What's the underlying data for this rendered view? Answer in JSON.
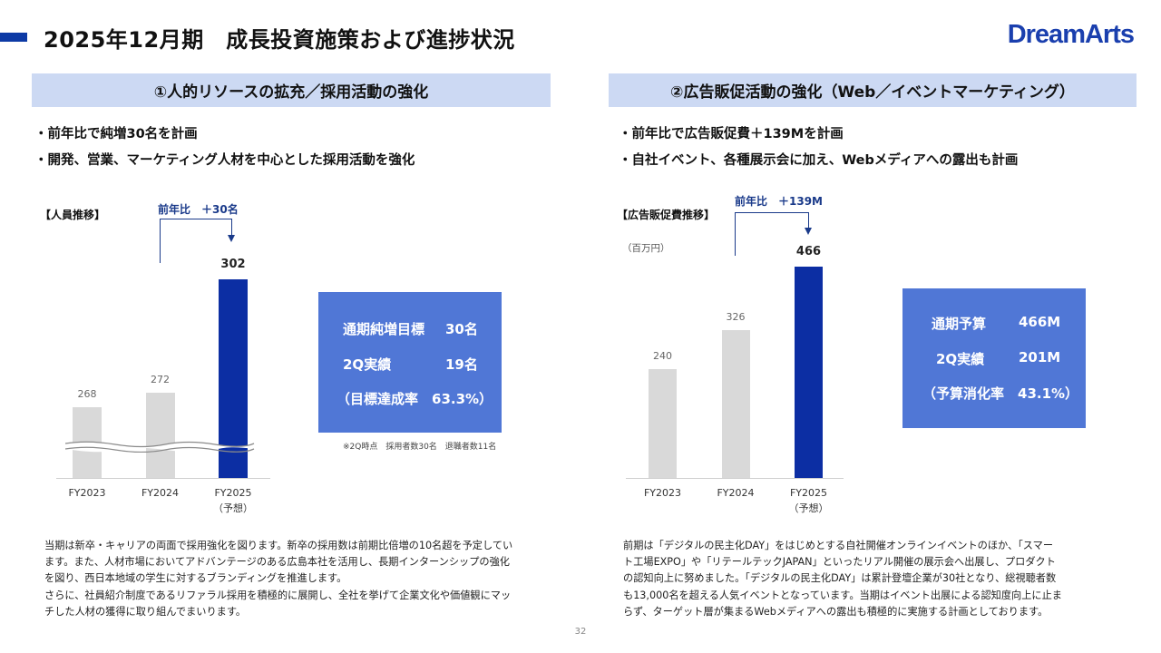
{
  "page": {
    "title": "2025年12月期　成長投資施策および進捗状況",
    "logo": "DreamArts",
    "page_number": "32"
  },
  "left": {
    "header": "①人的リソースの拡充／採用活動の強化",
    "bullets": [
      "・前年比で純増30名を計画",
      "・開発、営業、マーケティング人材を中心とした採用活動を強化"
    ],
    "chart_title": "【人員推移】",
    "yoy_label": "前年比　＋30名",
    "chart_data": {
      "type": "bar",
      "categories": [
        "FY2023",
        "FY2024",
        "FY2025"
      ],
      "category_notes": [
        "",
        "",
        "（予想）"
      ],
      "values": [
        268,
        272,
        302
      ],
      "value_labels": [
        "268",
        "272",
        "302"
      ],
      "broken_axis": true,
      "colors": [
        "#d9d9d9",
        "#d9d9d9",
        "#0c2ea3"
      ]
    },
    "kpi": {
      "row1_label": "通期純増目標",
      "row1_value": "30名",
      "row2_label": "2Q実績",
      "row2_value": "19名",
      "row3": "（目標達成率　63.3%）"
    },
    "kpi_note": "※2Q時点　採用者数30名　退職者数11名",
    "description": [
      "当期は新卒・キャリアの両面で採用強化を図ります。新卒の採用数は前期比倍増の10名超を予定してい",
      "ます。また、人材市場においてアドバンテージのある広島本社を活用し、長期インターンシップの強化",
      "を図り、西日本地域の学生に対するブランディングを推進します。",
      "さらに、社員紹介制度であるリファラル採用を積極的に展開し、全社を挙げて企業文化や価値観にマッ",
      "チした人材の獲得に取り組んでまいります。"
    ]
  },
  "right": {
    "header": "②広告販促活動の強化（Web／イベントマーケティング）",
    "bullets": [
      "・前年比で広告販促費＋139Mを計画",
      "・自社イベント、各種展示会に加え、Webメディアへの露出も計画"
    ],
    "chart_title": "【広告販促費推移】",
    "unit": "（百万円）",
    "yoy_label": "前年比　＋139M",
    "chart_data": {
      "type": "bar",
      "categories": [
        "FY2023",
        "FY2024",
        "FY2025"
      ],
      "category_notes": [
        "",
        "",
        "（予想）"
      ],
      "values": [
        240,
        326,
        466
      ],
      "value_labels": [
        "240",
        "326",
        "466"
      ],
      "ylabel": "（百万円）",
      "colors": [
        "#d9d9d9",
        "#d9d9d9",
        "#0c2ea3"
      ]
    },
    "kpi": {
      "row1_label": "通期予算",
      "row1_value": "466M",
      "row2_label": "2Q実績",
      "row2_value": "201M",
      "row3": "（予算消化率　43.1%）"
    },
    "description": [
      "前期は「デジタルの民主化DAY」をはじめとする自社開催オンラインイベントのほか、「スマー",
      "ト工場EXPO」や「リテールテックJAPAN」といったリアル開催の展示会へ出展し、プロダクト",
      "の認知向上に努めました。「デジタルの民主化DAY」は累計登壇企業が30社となり、総視聴者数",
      "も13,000名を超える人気イベントとなっています。当期はイベント出展による認知度向上に止ま",
      "らず、ターゲット層が集まるWebメディアへの露出も積極的に実施する計画としております。"
    ]
  },
  "colors": {
    "brand": "#1a3fae",
    "header_band": "#ccd9f3",
    "kpi_box": "#5077d6",
    "bar_highlight": "#0c2ea3",
    "bar_muted": "#d9d9d9"
  }
}
